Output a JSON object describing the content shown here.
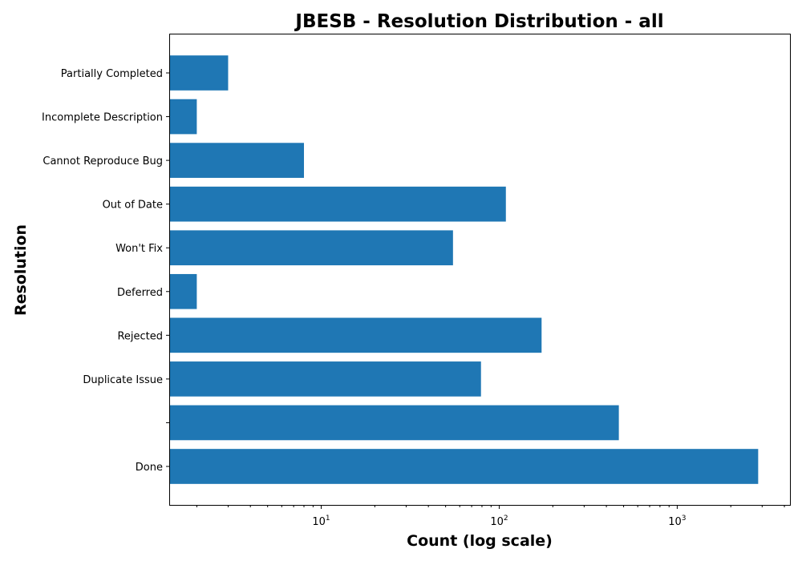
{
  "chart_data": {
    "type": "bar",
    "orientation": "horizontal",
    "title": "JBESB - Resolution Distribution - all",
    "xlabel": "Count (log scale)",
    "ylabel": "Resolution",
    "xscale": "log",
    "xlim": [
      1.4,
      4300
    ],
    "categories": [
      "Done",
      "",
      "Duplicate Issue",
      "Rejected",
      "Deferred",
      "Won't Fix",
      "Out of Date",
      "Cannot Reproduce Bug",
      "Incomplete Description",
      "Partially Completed"
    ],
    "values": [
      2850,
      470,
      79,
      173,
      2,
      55,
      109,
      8,
      2,
      3
    ],
    "x_ticks": [
      {
        "value": 10,
        "label": "10",
        "exp": "1"
      },
      {
        "value": 100,
        "label": "10",
        "exp": "2"
      },
      {
        "value": 1000,
        "label": "10",
        "exp": "3"
      }
    ],
    "color": "#1f77b4",
    "grid": false
  }
}
